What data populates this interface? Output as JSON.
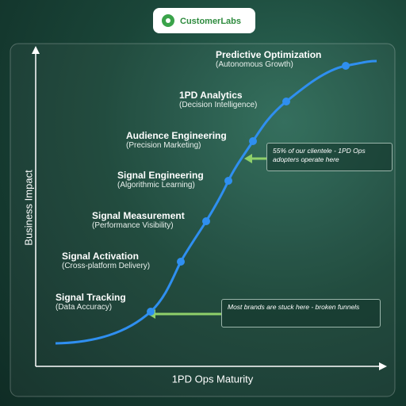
{
  "logo": {
    "text": "CustomerLabs"
  },
  "axes": {
    "y_label": "Business Impact",
    "x_label": "1PD Ops Maturity"
  },
  "stages": [
    {
      "title": "Signal Tracking",
      "subtitle": "(Data Accuracy)"
    },
    {
      "title": "Signal Activation",
      "subtitle": "(Cross-platform Delivery)"
    },
    {
      "title": "Signal Measurement",
      "subtitle": "(Performance Visibility)"
    },
    {
      "title": "Signal Engineering",
      "subtitle": "(Algorithmic Learning)"
    },
    {
      "title": "Audience Engineering",
      "subtitle": "(Precision Marketing)"
    },
    {
      "title": "1PD Analytics",
      "subtitle": "(Decision Intelligence)"
    },
    {
      "title": "Predictive Optimization",
      "subtitle": "(Autonomous Growth)"
    }
  ],
  "callouts": [
    {
      "text": "55% of our clientele - 1PD Ops adopters operate here"
    },
    {
      "text": "Most brands are stuck here - broken funnels"
    }
  ]
}
